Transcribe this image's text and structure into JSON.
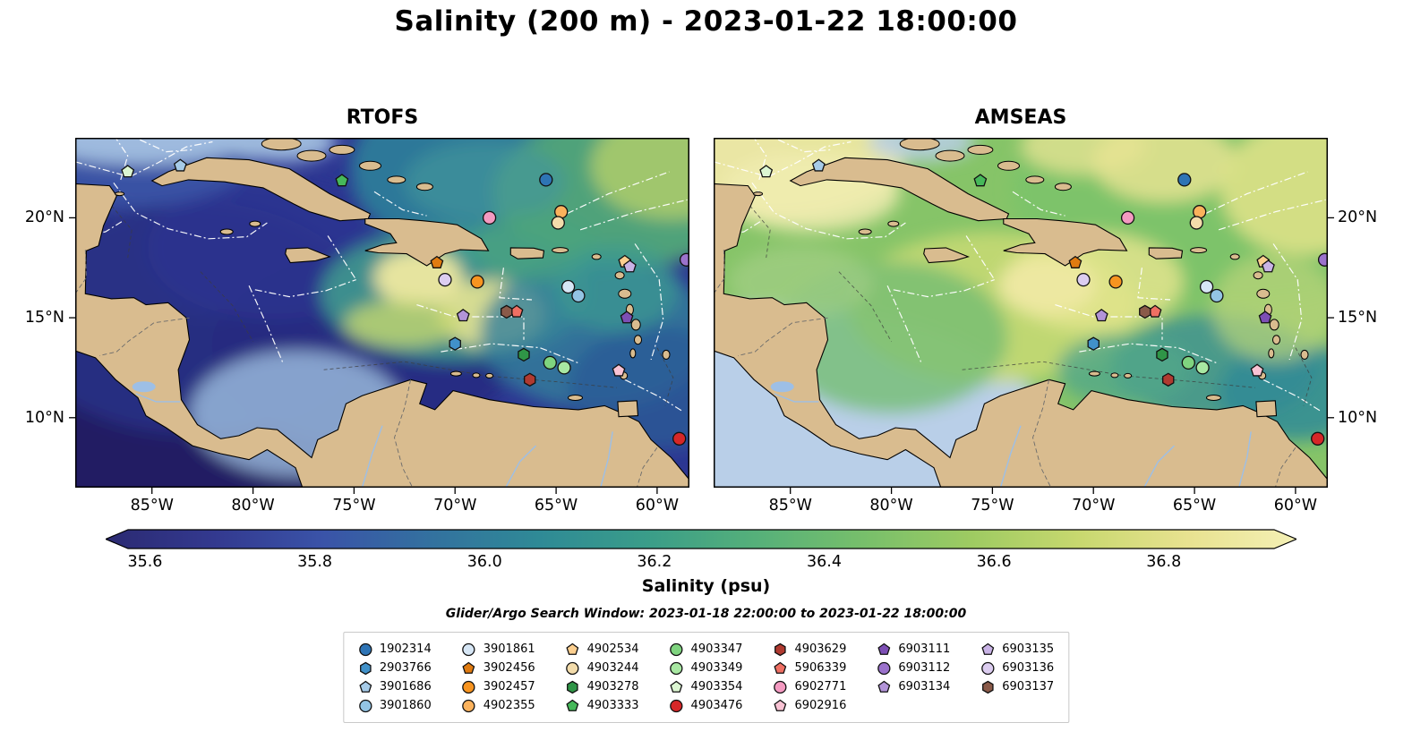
{
  "title": "Salinity (200 m) - 2023-01-22 18:00:00",
  "search_window": "Glider/Argo Search Window: 2023-01-18 22:00:00 to 2023-01-22 18:00:00",
  "chart_data": {
    "type": "heatmap",
    "description": "Two-panel map comparison of ocean salinity at 200 m over the Caribbean Sea with glider/Argo float positions",
    "panels": [
      {
        "title": "RTOFS"
      },
      {
        "title": "AMSEAS"
      }
    ],
    "axes": {
      "x_tick_labels": [
        "85°W",
        "80°W",
        "75°W",
        "70°W",
        "65°W",
        "60°W"
      ],
      "x_tick_lons": [
        -85,
        -80,
        -75,
        -70,
        -65,
        -60
      ],
      "y_tick_labels": [
        "20°N",
        "15°N",
        "10°N"
      ],
      "y_tick_lats": [
        20,
        15,
        10
      ],
      "lon_range": [
        -88.8,
        -58.4
      ],
      "lat_range": [
        6.5,
        24.0
      ]
    },
    "colorbar": {
      "label": "Salinity (psu)",
      "tick_labels": [
        "35.6",
        "35.8",
        "36.0",
        "36.2",
        "36.4",
        "36.6",
        "36.8"
      ],
      "tick_values": [
        35.6,
        35.8,
        36.0,
        36.2,
        36.4,
        36.6,
        36.8
      ],
      "range": [
        35.58,
        36.93
      ],
      "colors": [
        "#2b2a72",
        "#33398f",
        "#3a53a8",
        "#33719f",
        "#2f8a96",
        "#3a9d89",
        "#55b07a",
        "#77bf6b",
        "#9ecb62",
        "#c8d86f",
        "#e8e290",
        "#f4f0b5"
      ]
    },
    "legend_column_sizes": [
      4,
      4,
      4,
      4,
      4,
      3,
      3
    ],
    "floats": [
      {
        "id": "1902314",
        "shape": "circle",
        "color": "#2e74b5",
        "lon": -65.5,
        "lat": 21.9
      },
      {
        "id": "2903766",
        "shape": "hexagon",
        "color": "#4191c9",
        "lon": -70.0,
        "lat": 13.7
      },
      {
        "id": "3901686",
        "shape": "pentagon",
        "color": "#a6cbe8",
        "lon": -83.6,
        "lat": 22.6
      },
      {
        "id": "3901860",
        "shape": "circle",
        "color": "#93c4e4",
        "lon": -63.9,
        "lat": 16.1
      },
      {
        "id": "3901861",
        "shape": "circle",
        "color": "#d6e6f5",
        "lon": -64.4,
        "lat": 16.55
      },
      {
        "id": "3902456",
        "shape": "pentagon",
        "color": "#e07b10",
        "lon": -70.9,
        "lat": 17.75
      },
      {
        "id": "3902457",
        "shape": "circle",
        "color": "#f79420",
        "lon": -68.9,
        "lat": 16.8
      },
      {
        "id": "4902355",
        "shape": "circle",
        "color": "#fbb25c",
        "lon": -64.75,
        "lat": 20.3
      },
      {
        "id": "4902534",
        "shape": "pentagon",
        "color": "#fccf8f",
        "lon": -61.6,
        "lat": 17.8
      },
      {
        "id": "4903244",
        "shape": "circle",
        "color": "#f3dcab",
        "lon": -64.9,
        "lat": 19.75
      },
      {
        "id": "4903278",
        "shape": "hexagon",
        "color": "#2f9547",
        "lon": -66.6,
        "lat": 13.15
      },
      {
        "id": "4903333",
        "shape": "pentagon",
        "color": "#46b85a",
        "lon": -75.6,
        "lat": 21.85
      },
      {
        "id": "4903347",
        "shape": "circle",
        "color": "#7fd47f",
        "lon": -65.3,
        "lat": 12.75
      },
      {
        "id": "4903349",
        "shape": "circle",
        "color": "#a8e8a2",
        "lon": -64.6,
        "lat": 12.5
      },
      {
        "id": "4903354",
        "shape": "pentagon",
        "color": "#dcf6d2",
        "lon": -86.2,
        "lat": 22.3
      },
      {
        "id": "4903476",
        "shape": "circle",
        "color": "#d62728",
        "lon": -58.9,
        "lat": 8.95
      },
      {
        "id": "4903629",
        "shape": "hexagon",
        "color": "#b03a30",
        "lon": -66.3,
        "lat": 11.9
      },
      {
        "id": "5906339",
        "shape": "pentagon",
        "color": "#ef6f63",
        "lon": -66.95,
        "lat": 15.3
      },
      {
        "id": "6902771",
        "shape": "circle",
        "color": "#f49ac1",
        "lon": -68.3,
        "lat": 20.0
      },
      {
        "id": "6902916",
        "shape": "pentagon",
        "color": "#f9c3d4",
        "lon": -61.9,
        "lat": 12.35
      },
      {
        "id": "6903111",
        "shape": "pentagon",
        "color": "#7d4fb5",
        "lon": -61.5,
        "lat": 15.0
      },
      {
        "id": "6903112",
        "shape": "circle",
        "color": "#9b72cc",
        "lon": -58.55,
        "lat": 17.9
      },
      {
        "id": "6903134",
        "shape": "pentagon",
        "color": "#b294d8",
        "lon": -69.6,
        "lat": 15.1
      },
      {
        "id": "6903135",
        "shape": "pentagon",
        "color": "#c9b3e6",
        "lon": -61.35,
        "lat": 17.55
      },
      {
        "id": "6903136",
        "shape": "circle",
        "color": "#dccdf0",
        "lon": -70.5,
        "lat": 16.9
      },
      {
        "id": "6903137",
        "shape": "hexagon",
        "color": "#8a5a49",
        "lon": -67.45,
        "lat": 15.3
      }
    ]
  }
}
